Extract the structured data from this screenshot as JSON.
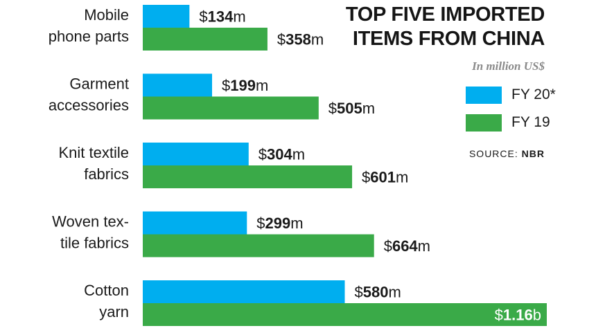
{
  "title_lines": [
    "TOP FIVE IMPORTED",
    "ITEMS FROM CHINA"
  ],
  "unit_note": "In million US$",
  "source_prefix": "SOURCE:",
  "source_name": "NBR",
  "colors": {
    "fy20": "#00aeef",
    "fy19": "#3aaa48",
    "text": "#1a1a1a",
    "subtitle": "#8a8a8a"
  },
  "chart_data": {
    "type": "bar",
    "orientation": "horizontal",
    "title": "TOP FIVE IMPORTED ITEMS FROM CHINA",
    "ylabel": "",
    "xlabel": "",
    "unit": "In million US$",
    "legend_position": "right",
    "grid": false,
    "categories": [
      [
        "Mobile",
        "phone parts"
      ],
      [
        "Garment",
        "accessories"
      ],
      [
        "Knit textile",
        "fabrics"
      ],
      [
        "Woven tex-",
        "tile fabrics"
      ],
      [
        "Cotton",
        "yarn"
      ]
    ],
    "series": [
      {
        "name": "FY 20*",
        "values": [
          134,
          199,
          304,
          299,
          580
        ],
        "labels": [
          {
            "cur": "$",
            "num": "134",
            "suf": "m"
          },
          {
            "cur": "$",
            "num": "199",
            "suf": "m"
          },
          {
            "cur": "$",
            "num": "304",
            "suf": "m"
          },
          {
            "cur": "$",
            "num": "299",
            "suf": "m"
          },
          {
            "cur": "$",
            "num": "580",
            "suf": "m"
          }
        ]
      },
      {
        "name": "FY 19",
        "values": [
          358,
          505,
          601,
          664,
          1160
        ],
        "labels": [
          {
            "cur": "$",
            "num": "358",
            "suf": "m"
          },
          {
            "cur": "$",
            "num": "505",
            "suf": "m"
          },
          {
            "cur": "$",
            "num": "601",
            "suf": "m"
          },
          {
            "cur": "$",
            "num": "664",
            "suf": "m"
          },
          {
            "cur": "$",
            "num": "1.16",
            "suf": "b"
          }
        ]
      }
    ],
    "xlim": [
      0,
      1160
    ]
  }
}
